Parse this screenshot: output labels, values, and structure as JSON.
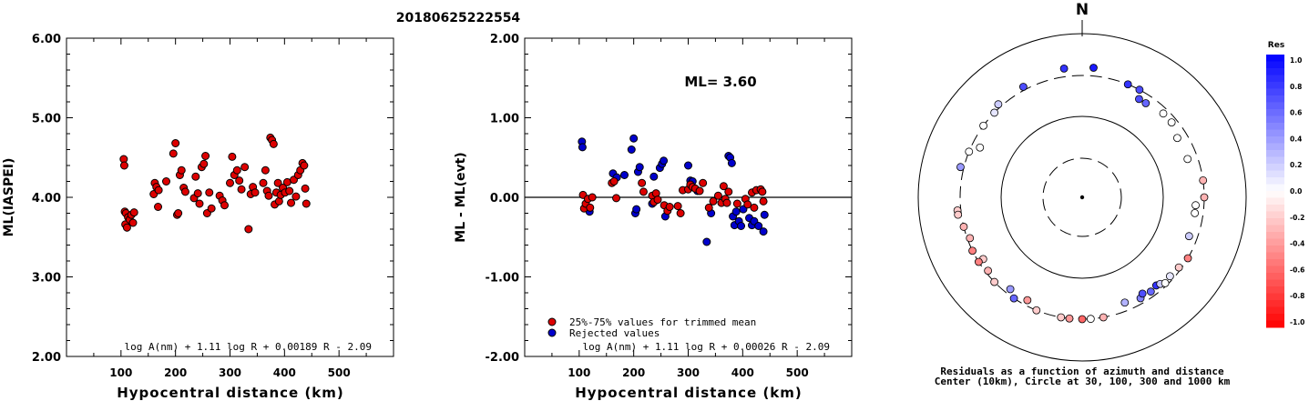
{
  "title": "20180625222554",
  "chart_data": [
    {
      "type": "scatter",
      "ylabel": "ML(IASPEI)",
      "xlabel": "Hypocentral distance (km)",
      "xlim": [
        0,
        600
      ],
      "ylim": [
        2.0,
        6.0
      ],
      "xticks": [
        "100",
        "200",
        "300",
        "400",
        "500"
      ],
      "yticks": [
        "2.00",
        "3.00",
        "4.00",
        "5.00",
        "6.00"
      ],
      "formula": "log A(nm) + 1.11 log R + 0.00189 R - 2.09",
      "marker_color": "#dd0000",
      "points": [
        [
          105,
          4.48
        ],
        [
          106,
          4.4
        ],
        [
          107,
          3.82
        ],
        [
          109,
          3.8
        ],
        [
          108,
          3.66
        ],
        [
          111,
          3.62
        ],
        [
          113,
          3.75
        ],
        [
          116,
          3.72
        ],
        [
          119,
          3.78
        ],
        [
          122,
          3.68
        ],
        [
          124,
          3.81
        ],
        [
          160,
          4.04
        ],
        [
          162,
          4.18
        ],
        [
          165,
          4.13
        ],
        [
          168,
          3.88
        ],
        [
          169,
          4.09
        ],
        [
          183,
          4.2
        ],
        [
          196,
          4.55
        ],
        [
          200,
          4.68
        ],
        [
          203,
          3.78
        ],
        [
          205,
          3.8
        ],
        [
          208,
          4.28
        ],
        [
          211,
          4.34
        ],
        [
          215,
          4.12
        ],
        [
          218,
          4.07
        ],
        [
          234,
          3.99
        ],
        [
          237,
          4.26
        ],
        [
          241,
          4.05
        ],
        [
          244,
          3.92
        ],
        [
          248,
          4.38
        ],
        [
          252,
          4.42
        ],
        [
          255,
          4.52
        ],
        [
          258,
          3.8
        ],
        [
          262,
          4.06
        ],
        [
          266,
          3.86
        ],
        [
          281,
          4.02
        ],
        [
          286,
          3.96
        ],
        [
          290,
          3.9
        ],
        [
          300,
          4.18
        ],
        [
          304,
          4.51
        ],
        [
          308,
          4.28
        ],
        [
          313,
          4.34
        ],
        [
          317,
          4.21
        ],
        [
          321,
          4.1
        ],
        [
          327,
          4.38
        ],
        [
          334,
          3.6
        ],
        [
          338,
          4.04
        ],
        [
          342,
          4.13
        ],
        [
          346,
          4.06
        ],
        [
          361,
          4.18
        ],
        [
          365,
          4.34
        ],
        [
          368,
          4.08
        ],
        [
          371,
          4.02
        ],
        [
          374,
          4.75
        ],
        [
          377,
          4.72
        ],
        [
          380,
          4.67
        ],
        [
          382,
          3.91
        ],
        [
          385,
          4.06
        ],
        [
          388,
          4.18
        ],
        [
          390,
          3.95
        ],
        [
          393,
          4.03
        ],
        [
          397,
          4.12
        ],
        [
          401,
          4.06
        ],
        [
          405,
          4.19
        ],
        [
          409,
          4.08
        ],
        [
          412,
          3.93
        ],
        [
          417,
          4.22
        ],
        [
          421,
          4.01
        ],
        [
          425,
          4.28
        ],
        [
          429,
          4.34
        ],
        [
          433,
          4.43
        ],
        [
          436,
          4.4
        ],
        [
          438,
          4.11
        ],
        [
          440,
          3.92
        ]
      ]
    },
    {
      "type": "scatter",
      "ylabel": "ML - ML(evt)",
      "xlabel": "Hypocentral distance (km)",
      "xlim": [
        0,
        600
      ],
      "ylim": [
        -2.0,
        2.0
      ],
      "xticks": [
        "100",
        "200",
        "300",
        "400",
        "500"
      ],
      "yticks": [
        "-2.00",
        "-1.00",
        "0.00",
        "1.00",
        "2.00"
      ],
      "annotation": "ML= 3.60",
      "formula": "log A(nm) + 1.11 log R + 0.00026 R - 2.09",
      "legend": [
        {
          "label": "25%-75% values for trimmed mean",
          "color": "#dd0000"
        },
        {
          "label": "Rejected values",
          "color": "#0000cc"
        }
      ],
      "accepted": [
        [
          107,
          0.03
        ],
        [
          109,
          -0.14
        ],
        [
          112,
          -0.08
        ],
        [
          116,
          -0.02
        ],
        [
          120,
          -0.13
        ],
        [
          124,
          0.0
        ],
        [
          160,
          0.18
        ],
        [
          164,
          0.2
        ],
        [
          168,
          -0.01
        ],
        [
          215,
          0.18
        ],
        [
          218,
          0.07
        ],
        [
          234,
          0.02
        ],
        [
          237,
          -0.06
        ],
        [
          241,
          0.05
        ],
        [
          244,
          -0.03
        ],
        [
          256,
          -0.1
        ],
        [
          262,
          -0.17
        ],
        [
          266,
          -0.12
        ],
        [
          281,
          -0.11
        ],
        [
          286,
          -0.2
        ],
        [
          290,
          0.09
        ],
        [
          300,
          0.1
        ],
        [
          304,
          0.16
        ],
        [
          308,
          0.13
        ],
        [
          313,
          0.11
        ],
        [
          321,
          0.08
        ],
        [
          327,
          0.18
        ],
        [
          338,
          -0.13
        ],
        [
          346,
          -0.05
        ],
        [
          355,
          0.02
        ],
        [
          361,
          -0.07
        ],
        [
          365,
          0.14
        ],
        [
          368,
          -0.02
        ],
        [
          371,
          -0.07
        ],
        [
          374,
          0.07
        ],
        [
          390,
          -0.08
        ],
        [
          405,
          -0.02
        ],
        [
          409,
          -0.09
        ],
        [
          417,
          0.06
        ],
        [
          421,
          -0.13
        ],
        [
          425,
          0.09
        ],
        [
          433,
          0.1
        ],
        [
          436,
          0.07
        ],
        [
          438,
          -0.05
        ]
      ],
      "rejected": [
        [
          105,
          0.7
        ],
        [
          106,
          0.63
        ],
        [
          119,
          -0.18
        ],
        [
          162,
          0.3
        ],
        [
          169,
          0.25
        ],
        [
          183,
          0.28
        ],
        [
          196,
          0.6
        ],
        [
          200,
          0.74
        ],
        [
          203,
          -0.2
        ],
        [
          205,
          -0.15
        ],
        [
          208,
          0.32
        ],
        [
          211,
          0.38
        ],
        [
          234,
          -0.08
        ],
        [
          237,
          0.26
        ],
        [
          248,
          0.37
        ],
        [
          252,
          0.42
        ],
        [
          255,
          0.46
        ],
        [
          258,
          -0.24
        ],
        [
          300,
          0.4
        ],
        [
          304,
          0.21
        ],
        [
          308,
          0.2
        ],
        [
          317,
          0.08
        ],
        [
          334,
          -0.56
        ],
        [
          342,
          -0.2
        ],
        [
          374,
          0.52
        ],
        [
          377,
          0.5
        ],
        [
          380,
          0.43
        ],
        [
          382,
          -0.24
        ],
        [
          385,
          -0.35
        ],
        [
          388,
          -0.18
        ],
        [
          393,
          -0.3
        ],
        [
          397,
          -0.36
        ],
        [
          401,
          -0.15
        ],
        [
          412,
          -0.26
        ],
        [
          417,
          -0.35
        ],
        [
          421,
          -0.3
        ],
        [
          429,
          -0.36
        ],
        [
          440,
          -0.22
        ],
        [
          438,
          -0.43
        ]
      ]
    },
    {
      "type": "polar-scatter",
      "north_label": "N",
      "caption_line1": "Residuals as a function of azimuth and distance",
      "caption_line2": "Center (10km), Circle at 30, 100, 300 and 1000 km",
      "colorbar": {
        "title": "Res",
        "ticks": [
          "1.0",
          "0.8",
          "0.6",
          "0.4",
          "0.2",
          "0.0",
          "-0.2",
          "-0.4",
          "-0.6",
          "-0.8",
          "-1.0"
        ]
      },
      "points_az_deg_dist_km_res": [
        [
          352,
          380,
          0.8
        ],
        [
          5,
          380,
          0.9
        ],
        [
          332,
          330,
          0.7
        ],
        [
          318,
          330,
          0.2
        ],
        [
          314,
          300,
          0.1
        ],
        [
          306,
          300,
          0.0
        ],
        [
          296,
          240,
          0.0
        ],
        [
          292,
          300,
          0.0
        ],
        [
          284,
          330,
          0.4
        ],
        [
          264,
          330,
          -0.2
        ],
        [
          262,
          330,
          -0.2
        ],
        [
          256,
          300,
          -0.3
        ],
        [
          250,
          280,
          -0.3
        ],
        [
          244,
          300,
          -0.5
        ],
        [
          238,
          260,
          -0.2
        ],
        [
          232,
          280,
          -0.3
        ],
        [
          226,
          300,
          -0.2
        ],
        [
          218,
          260,
          0.4
        ],
        [
          214,
          300,
          0.6
        ],
        [
          208,
          260,
          -0.4
        ],
        [
          202,
          300,
          -0.2
        ],
        [
          190,
          300,
          -0.2
        ],
        [
          186,
          300,
          -0.4
        ],
        [
          180,
          300,
          -0.6
        ],
        [
          176,
          300,
          0.0
        ],
        [
          170,
          300,
          -0.3
        ],
        [
          158,
          240,
          0.3
        ],
        [
          150,
          260,
          0.5
        ],
        [
          148,
          240,
          0.7
        ],
        [
          144,
          260,
          0.6
        ],
        [
          140,
          250,
          0.8
        ],
        [
          138,
          260,
          0.2
        ],
        [
          136,
          280,
          0.0
        ],
        [
          132,
          270,
          0.1
        ],
        [
          126,
          280,
          -0.2
        ],
        [
          120,
          300,
          -0.5
        ],
        [
          110,
          240,
          0.2
        ],
        [
          98,
          240,
          0.0
        ],
        [
          94,
          240,
          0.0
        ],
        [
          90,
          300,
          -0.3
        ],
        [
          82,
          300,
          -0.3
        ],
        [
          70,
          230,
          0.0
        ],
        [
          58,
          230,
          0.0
        ],
        [
          50,
          260,
          0.0
        ],
        [
          44,
          260,
          0.0
        ],
        [
          30,
          240,
          0.7
        ],
        [
          22,
          300,
          0.8
        ],
        [
          28,
          300,
          0.7
        ],
        [
          238,
          300,
          -0.5
        ],
        [
          34,
          240,
          0.6
        ]
      ]
    }
  ]
}
